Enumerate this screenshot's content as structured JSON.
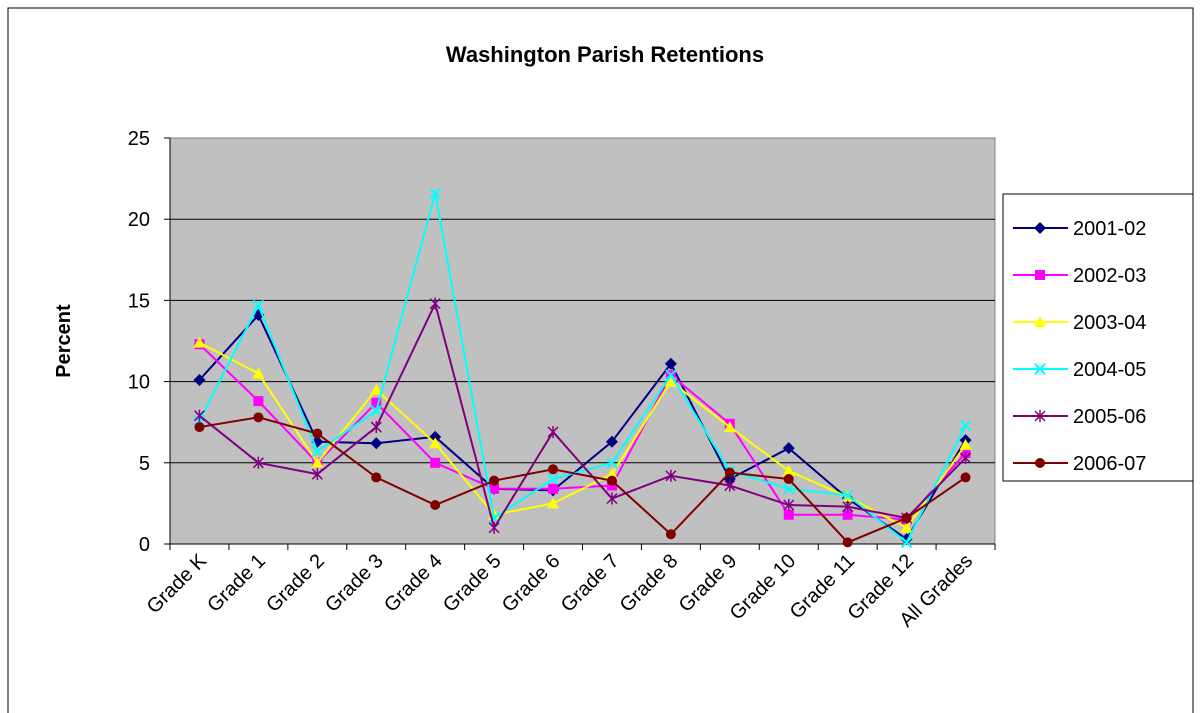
{
  "chart_data": {
    "type": "line",
    "title": "Washington Parish Retentions",
    "y_label": "Percent",
    "categories": [
      "Grade K",
      "Grade 1",
      "Grade 2",
      "Grade 3",
      "Grade 4",
      "Grade 5",
      "Grade 6",
      "Grade 7",
      "Grade 8",
      "Grade 9",
      "Grade 10",
      "Grade 11",
      "Grade 12",
      "All Grades"
    ],
    "series": [
      {
        "name": "2001-02",
        "color": "#000080",
        "marker": "diamond",
        "values": [
          10.1,
          14.1,
          6.3,
          6.2,
          6.6,
          3.4,
          3.3,
          6.3,
          11.1,
          4.0,
          5.9,
          2.8,
          0.3,
          6.4
        ]
      },
      {
        "name": "2002-03",
        "color": "#ff00ff",
        "marker": "square",
        "values": [
          12.3,
          8.8,
          5.0,
          8.7,
          5.0,
          3.4,
          3.4,
          3.6,
          10.4,
          7.4,
          1.8,
          1.8,
          1.5,
          5.6
        ]
      },
      {
        "name": "2003-04",
        "color": "#ffff00",
        "marker": "triangle",
        "values": [
          12.4,
          10.5,
          5.0,
          9.5,
          6.2,
          1.8,
          2.5,
          4.3,
          10.0,
          7.2,
          4.5,
          2.9,
          1.0,
          6.1
        ]
      },
      {
        "name": "2004-05",
        "color": "#00ffff",
        "marker": "x",
        "values": [
          7.6,
          14.7,
          5.7,
          8.2,
          21.6,
          1.6,
          4.0,
          5.0,
          10.4,
          4.5,
          3.4,
          3.0,
          0.1,
          7.3
        ]
      },
      {
        "name": "2005-06",
        "color": "#800080",
        "marker": "star",
        "values": [
          7.9,
          5.0,
          4.3,
          7.2,
          14.8,
          1.0,
          6.9,
          2.8,
          4.2,
          3.6,
          2.4,
          2.3,
          1.6,
          5.3
        ]
      },
      {
        "name": "2006-07",
        "color": "#800000",
        "marker": "circle",
        "values": [
          7.2,
          7.8,
          6.8,
          4.1,
          2.4,
          3.9,
          4.6,
          3.9,
          0.6,
          4.4,
          4.0,
          0.1,
          1.6,
          4.1
        ]
      }
    ],
    "ylim": [
      0,
      25
    ],
    "yticks": [
      0,
      5,
      10,
      15,
      20,
      25
    ],
    "grid": true,
    "legend": "right"
  }
}
